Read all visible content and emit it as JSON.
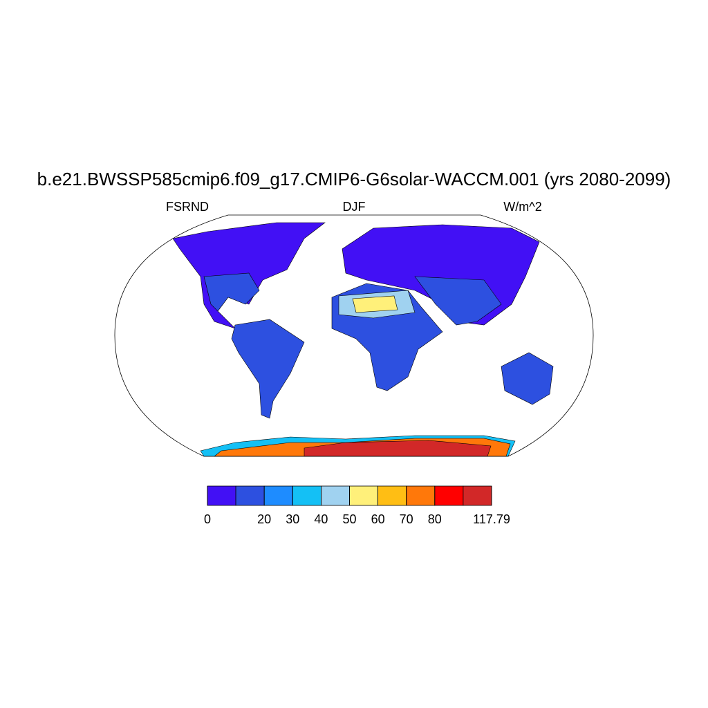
{
  "title": "b.e21.BWSSP585cmip6.f09_g17.CMIP6-G6solar-WACCM.001 (yrs 2080-2099)",
  "left_label": "FSRND",
  "center_label": "DJF",
  "right_label": "W/m^2",
  "colorbar": {
    "colors": [
      "#4210f5",
      "#2d50e0",
      "#1e8cff",
      "#14c0f5",
      "#a0d2f0",
      "#fff07a",
      "#ffbe14",
      "#ff780a",
      "#ff0000",
      "#d22828"
    ],
    "ticks": [
      0,
      null,
      20,
      30,
      40,
      50,
      60,
      70,
      80,
      null,
      117.79
    ]
  }
}
